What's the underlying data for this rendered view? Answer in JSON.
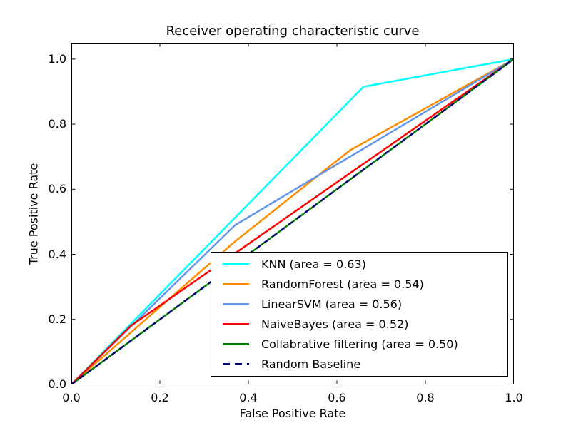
{
  "chart_data": {
    "type": "line",
    "title": "Receiver operating characteristic curve",
    "xlabel": "False Positive Rate",
    "ylabel": "True Positive Rate",
    "xlim": [
      0.0,
      1.0
    ],
    "ylim": [
      0.0,
      1.05
    ],
    "x_ticks": [
      0.0,
      0.2,
      0.4,
      0.6,
      0.8,
      1.0
    ],
    "x_tick_labels": [
      "0.0",
      "0.2",
      "0.4",
      "0.6",
      "0.8",
      "1.0"
    ],
    "y_ticks": [
      0.0,
      0.2,
      0.4,
      0.6,
      0.8,
      1.0
    ],
    "y_tick_labels": [
      "0.0",
      "0.2",
      "0.4",
      "0.6",
      "0.8",
      "1.0"
    ],
    "grid": false,
    "background_color": "#ffffff",
    "spine_color": "#000000",
    "legend": {
      "position": "lower-right-inside",
      "border_color": "#000000"
    },
    "series": [
      {
        "id": "knn",
        "name": "KNN (area = 0.63)",
        "auc": 0.63,
        "color": "#00FFFF",
        "style": "solid",
        "points": [
          [
            0.0,
            0.0
          ],
          [
            0.66,
            0.915
          ],
          [
            1.0,
            1.0
          ]
        ]
      },
      {
        "id": "random-forest",
        "name": "RandomForest (area = 0.54)",
        "auc": 0.54,
        "color": "#FF8C00",
        "style": "solid",
        "points": [
          [
            0.0,
            0.0
          ],
          [
            0.37,
            0.44
          ],
          [
            0.63,
            0.72
          ],
          [
            1.0,
            1.0
          ]
        ]
      },
      {
        "id": "linear-svm",
        "name": "LinearSVM (area = 0.56)",
        "auc": 0.56,
        "color": "#6495ED",
        "style": "solid",
        "points": [
          [
            0.0,
            0.0
          ],
          [
            0.37,
            0.49
          ],
          [
            1.0,
            1.0
          ]
        ]
      },
      {
        "id": "naive-bayes",
        "name": "NaiveBayes (area = 0.52)",
        "auc": 0.52,
        "color": "#FF0000",
        "style": "solid",
        "points": [
          [
            0.0,
            0.0
          ],
          [
            0.134,
            0.18
          ],
          [
            1.0,
            1.0
          ]
        ]
      },
      {
        "id": "collaborative-filtering",
        "name": "Collabrative filtering (area = 0.50)",
        "auc": 0.5,
        "color": "#008000",
        "style": "solid",
        "points": [
          [
            0.0,
            0.0
          ],
          [
            1.0,
            1.0
          ]
        ]
      },
      {
        "id": "random-baseline",
        "name": "Random Baseline",
        "color": "#000080",
        "style": "dashed",
        "points": [
          [
            0.0,
            0.0
          ],
          [
            1.0,
            1.0
          ]
        ]
      }
    ]
  }
}
